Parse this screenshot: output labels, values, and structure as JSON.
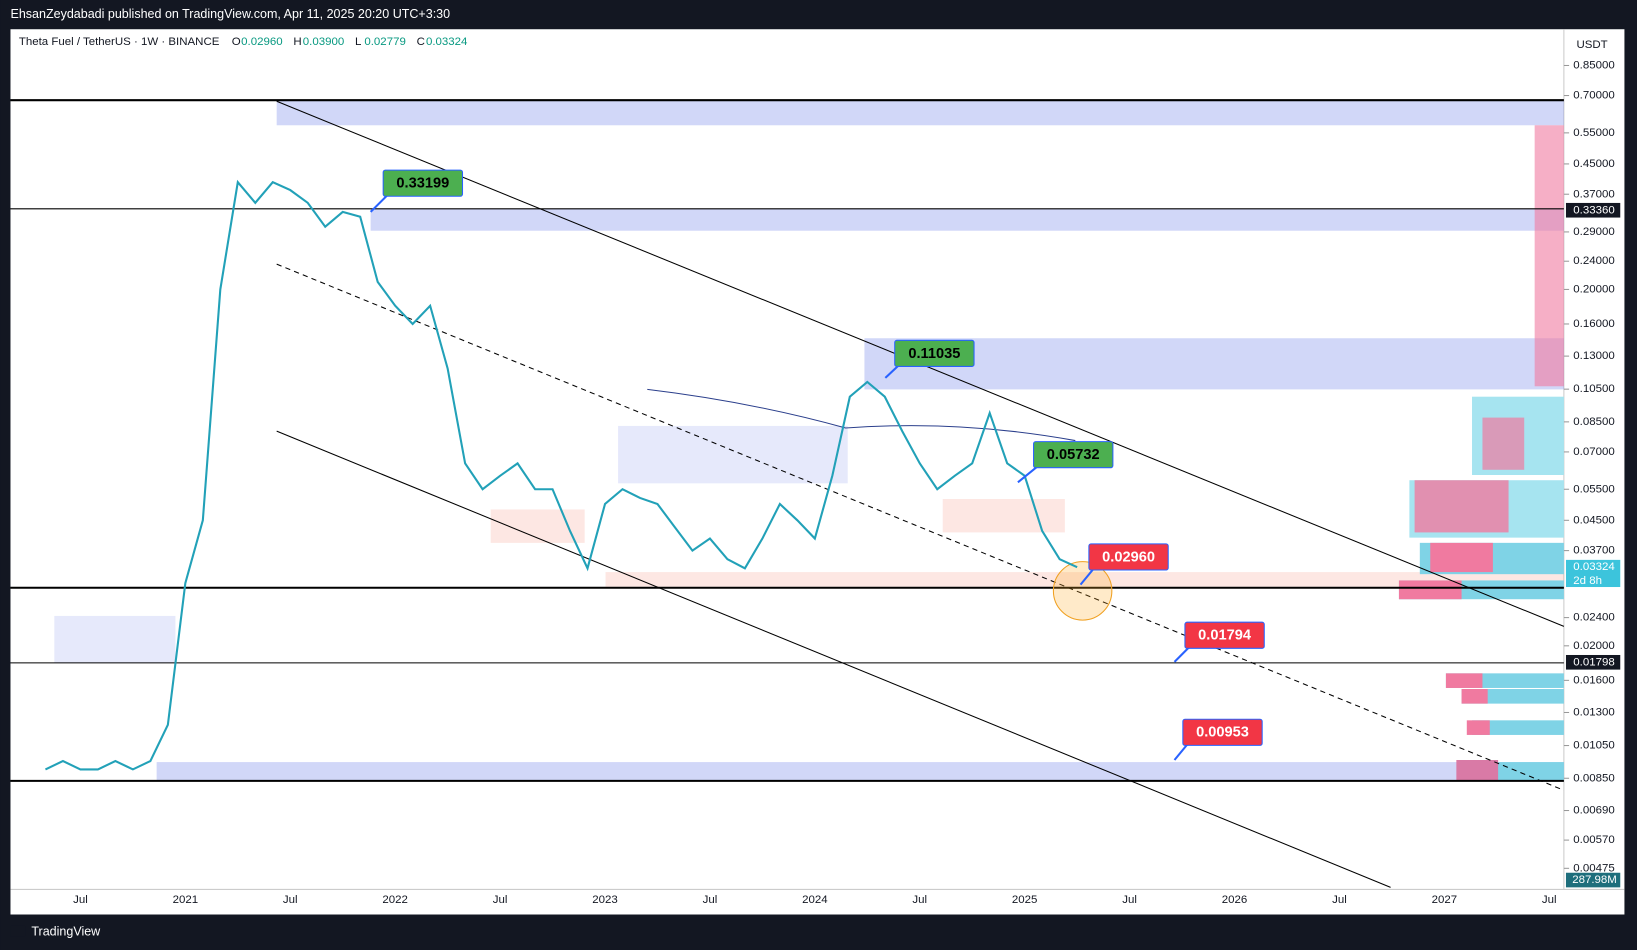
{
  "header": {
    "text": "EhsanZeydabadi published on TradingView.com, Apr 11, 2025 20:20 UTC+3:30"
  },
  "symbol": {
    "name": "Theta Fuel / TetherUS · 1W · BINANCE",
    "ohlc": [
      {
        "key": "O",
        "value": "0.02960"
      },
      {
        "key": "H",
        "value": "0.03900"
      },
      {
        "key": "L",
        "value": "0.02779"
      },
      {
        "key": "C",
        "value": "0.03324"
      }
    ]
  },
  "currency": "USDT",
  "footer": "TradingView",
  "chart_data": {
    "type": "line",
    "color": "#22a1b8",
    "log": true,
    "grid": false,
    "categories": [
      null,
      null,
      "Jul",
      null,
      null,
      null,
      null,
      null,
      "2021",
      null,
      null,
      null,
      null,
      null,
      "Jul",
      null,
      null,
      null,
      null,
      null,
      "2022",
      null,
      null,
      null,
      null,
      null,
      "Jul",
      null,
      null,
      null,
      null,
      null,
      "2023",
      null,
      null,
      null,
      null,
      null,
      "Jul",
      null,
      null,
      null,
      null,
      null,
      "2024",
      null,
      null,
      null,
      null,
      null,
      "Jul",
      null,
      null,
      null,
      null,
      null,
      "2025",
      null,
      null,
      null,
      null,
      null,
      "Jul",
      null,
      null,
      null,
      null,
      null,
      "2026",
      null,
      null,
      null,
      null,
      null,
      "Jul",
      null,
      null,
      null,
      null,
      null,
      "2027",
      null,
      null,
      null,
      null,
      null,
      "Jul"
    ],
    "values": [
      0.009,
      0.0095,
      0.009,
      0.009,
      0.0095,
      0.009,
      0.0095,
      0.012,
      0.03,
      0.045,
      0.2,
      0.4,
      0.35,
      0.4,
      0.38,
      0.35,
      0.3,
      0.33,
      0.32,
      0.21,
      0.18,
      0.16,
      0.18,
      0.12,
      0.065,
      0.055,
      0.06,
      0.065,
      0.055,
      0.055,
      0.042,
      0.033,
      0.05,
      0.055,
      0.052,
      0.05,
      0.043,
      0.037,
      0.04,
      0.035,
      0.033,
      0.04,
      0.05,
      0.045,
      0.04,
      0.06,
      0.1,
      0.11,
      0.1,
      0.08,
      0.065,
      0.055,
      0.06,
      0.065,
      0.09,
      0.065,
      0.06,
      0.042,
      0.035,
      0.03324,
      null,
      null,
      null,
      null,
      null,
      null,
      null,
      null,
      null,
      null,
      null,
      null,
      null,
      null,
      null,
      null,
      null,
      null,
      null,
      null,
      null,
      null,
      null,
      null,
      null,
      null,
      null
    ],
    "ylim": [
      0.0042,
      1.06
    ],
    "yticks": [
      {
        "value": 0.85,
        "label": "0.85000"
      },
      {
        "value": 0.7,
        "label": "0.70000"
      },
      {
        "value": 0.55,
        "label": "0.55000"
      },
      {
        "value": 0.45,
        "label": "0.45000"
      },
      {
        "value": 0.37,
        "label": "0.37000"
      },
      {
        "value": 0.29,
        "label": "0.29000"
      },
      {
        "value": 0.24,
        "label": "0.24000"
      },
      {
        "value": 0.2,
        "label": "0.20000"
      },
      {
        "value": 0.16,
        "label": "0.16000"
      },
      {
        "value": 0.13,
        "label": "0.13000"
      },
      {
        "value": 0.105,
        "label": "0.10500"
      },
      {
        "value": 0.085,
        "label": "0.08500"
      },
      {
        "value": 0.07,
        "label": "0.07000"
      },
      {
        "value": 0.055,
        "label": "0.05500"
      },
      {
        "value": 0.045,
        "label": "0.04500"
      },
      {
        "value": 0.037,
        "label": "0.03700"
      },
      {
        "value": 0.024,
        "label": "0.02400"
      },
      {
        "value": 0.02,
        "label": "0.02000"
      },
      {
        "value": 0.016,
        "label": "0.01600"
      },
      {
        "value": 0.013,
        "label": "0.01300"
      },
      {
        "value": 0.0105,
        "label": "0.01050"
      },
      {
        "value": 0.0085,
        "label": "0.00850"
      },
      {
        "value": 0.0069,
        "label": "0.00690"
      },
      {
        "value": 0.0057,
        "label": "0.00570"
      },
      {
        "value": 0.00475,
        "label": "0.00475"
      }
    ],
    "price_labels": [
      {
        "value": 0.3336,
        "label": "0.33360",
        "color": "#131722"
      },
      {
        "value": 0.03324,
        "label": "0.03324",
        "color": "#3cc4dc"
      },
      {
        "value": 0.01798,
        "label": "0.01798",
        "color": "#131722"
      }
    ],
    "countdown": "2d 8h",
    "volume_label": "287.98M",
    "annotations": [
      {
        "text": "0.33199",
        "color": "#4caf50"
      },
      {
        "text": "0.11035",
        "color": "#4caf50"
      },
      {
        "text": "0.05732",
        "color": "#4caf50"
      },
      {
        "text": "0.02960",
        "color": "#f23645"
      },
      {
        "text": "0.01794",
        "color": "#f23645"
      },
      {
        "text": "0.00953",
        "color": "#f23645"
      }
    ]
  }
}
